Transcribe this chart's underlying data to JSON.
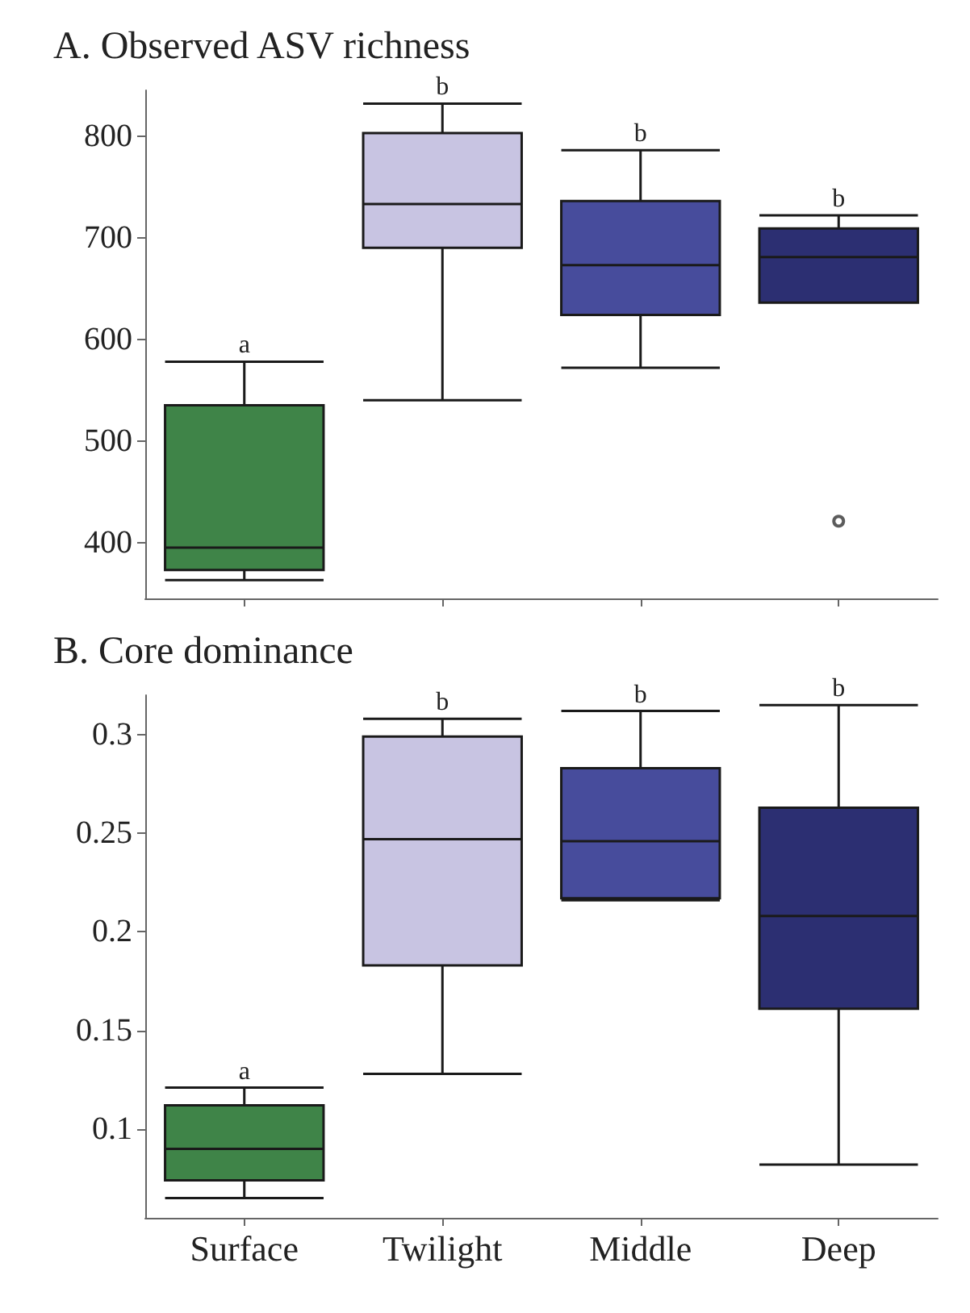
{
  "chart_data": [
    {
      "type": "box",
      "title": "A. Observed ASV richness",
      "categories": [
        "Surface",
        "Twilight",
        "Middle",
        "Deep"
      ],
      "colors": [
        "#3f8448",
        "#c8c4e2",
        "#474c9c",
        "#2c2f72"
      ],
      "tick_labels": "y",
      "ylim": [
        345,
        845
      ],
      "yticks": [
        400,
        500,
        600,
        700,
        800
      ],
      "grid": false,
      "boxes": [
        {
          "low": 363,
          "q1": 373,
          "median": 395,
          "q3": 535,
          "high": 578
        },
        {
          "low": 540,
          "q1": 690,
          "median": 733,
          "q3": 803,
          "high": 832
        },
        {
          "low": 572,
          "q1": 624,
          "median": 673,
          "q3": 736,
          "high": 786
        },
        {
          "low": 636,
          "q1": 636,
          "median": 681,
          "q3": 709,
          "high": 722,
          "outliers": [
            421
          ]
        }
      ],
      "annotations": [
        {
          "text": "a",
          "x": "Surface",
          "y": 578
        },
        {
          "text": "b",
          "x": "Twilight",
          "y": 832
        },
        {
          "text": "b",
          "x": "Middle",
          "y": 786
        },
        {
          "text": "b",
          "x": "Deep",
          "y": 722
        }
      ]
    },
    {
      "type": "box",
      "title": "B. Core dominance",
      "categories": [
        "Surface",
        "Twilight",
        "Middle",
        "Deep"
      ],
      "colors": [
        "#3f8448",
        "#c8c4e2",
        "#474c9c",
        "#2c2f72"
      ],
      "ylim": [
        0.055,
        0.32
      ],
      "yticks": [
        0.1,
        0.15,
        0.2,
        0.25,
        0.3
      ],
      "grid": false,
      "boxes": [
        {
          "low": 0.065,
          "q1": 0.074,
          "median": 0.09,
          "q3": 0.112,
          "high": 0.121
        },
        {
          "low": 0.128,
          "q1": 0.183,
          "median": 0.247,
          "q3": 0.299,
          "high": 0.308
        },
        {
          "low": 0.216,
          "q1": 0.217,
          "median": 0.246,
          "q3": 0.283,
          "high": 0.312
        },
        {
          "low": 0.082,
          "q1": 0.161,
          "median": 0.208,
          "q3": 0.263,
          "high": 0.315
        }
      ],
      "annotations": [
        {
          "text": "a",
          "x": "Surface",
          "y": 0.121
        },
        {
          "text": "b",
          "x": "Twilight",
          "y": 0.308
        },
        {
          "text": "b",
          "x": "Middle",
          "y": 0.312
        },
        {
          "text": "b",
          "x": "Deep",
          "y": 0.315
        }
      ]
    }
  ]
}
